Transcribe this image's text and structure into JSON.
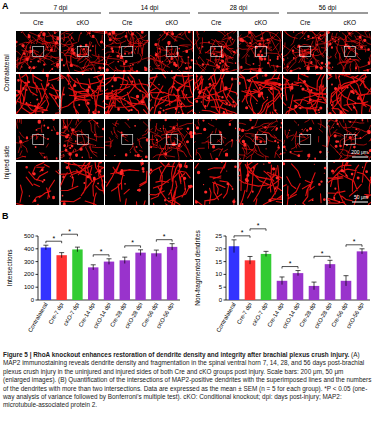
{
  "panel_a": {
    "label": "A",
    "time_points": [
      "7 dpi",
      "14 dpi",
      "28 dpi",
      "56 dpi"
    ],
    "groups": [
      "Cre",
      "cKO"
    ],
    "rows": [
      "Contralateral",
      "Injured side"
    ],
    "scale_bars": [
      "200 μm",
      "50 μm"
    ]
  },
  "panel_b": {
    "label": "B"
  },
  "chart_data": [
    {
      "type": "bar",
      "y_label": "Intersections",
      "categories": [
        "Contralateral",
        "Cre-7 dpi",
        "cKO-7 dpi",
        "Cre-14 dpi",
        "cKO-14 dpi",
        "Cre-28 dpi",
        "cKO-28 dpi",
        "Cre-56 dpi",
        "cKO-56 dpi"
      ],
      "values": [
        410,
        350,
        395,
        255,
        300,
        310,
        370,
        365,
        415
      ],
      "errors": [
        18,
        20,
        18,
        20,
        22,
        25,
        22,
        25,
        25
      ],
      "colors": [
        "#3333ff",
        "#ff3333",
        "#33cc33",
        "#9933cc",
        "#9933cc",
        "#9933cc",
        "#9933cc",
        "#9933cc",
        "#9933cc"
      ],
      "ylim": [
        0,
        500
      ],
      "yticks": [
        0,
        100,
        200,
        300,
        400,
        500
      ],
      "comparisons": [
        {
          "pair": [
            0,
            1
          ],
          "label": "*"
        },
        {
          "pair": [
            1,
            2
          ],
          "label": "*"
        },
        {
          "pair": [
            3,
            4
          ],
          "label": "*"
        },
        {
          "pair": [
            5,
            6
          ],
          "label": "*"
        },
        {
          "pair": [
            7,
            8
          ],
          "label": "*"
        }
      ]
    },
    {
      "type": "bar",
      "y_label": "Non-fragmented dendrites",
      "categories": [
        "Contralateral",
        "Cre-7 dpi",
        "cKO-7 dpi",
        "Cre-14 dpi",
        "cKO-14 dpi",
        "Cre-28 dpi",
        "cKO-28 dpi",
        "Cre-56 dpi",
        "cKO-56 dpi"
      ],
      "values": [
        21,
        15.5,
        18,
        7.5,
        10.5,
        5.5,
        14,
        7.5,
        19
      ],
      "errors": [
        2.5,
        1.5,
        1,
        1.5,
        1,
        1.5,
        1.5,
        2,
        1
      ],
      "colors": [
        "#3333ff",
        "#ff3333",
        "#33cc33",
        "#9933cc",
        "#9933cc",
        "#9933cc",
        "#9933cc",
        "#9933cc",
        "#9933cc"
      ],
      "ylim": [
        0,
        25
      ],
      "yticks": [
        0,
        5,
        10,
        15,
        20,
        25
      ],
      "comparisons": [
        {
          "pair": [
            0,
            1
          ],
          "label": "*"
        },
        {
          "pair": [
            1,
            2
          ],
          "label": "*"
        },
        {
          "pair": [
            3,
            4
          ],
          "label": "*"
        },
        {
          "pair": [
            5,
            6
          ],
          "label": "*"
        },
        {
          "pair": [
            7,
            8
          ],
          "label": "*"
        }
      ]
    }
  ],
  "caption": {
    "title": "Figure 5 | RhoA knockout enhances restoration of dendrite density and integrity after brachial plexus crush injury.",
    "text": "(A) MAP2 immunostaining reveals dendrite density and fragmentation in the spinal ventral horn 7, 14, 28, and 56 days post-brachial plexus crush injury in the uninjured and injured sides of both Cre and cKO groups post injury. Scale bars: 200 μm, 50 μm (enlarged images). (B) Quantification of the intersections of MAP2-positive dendrites with the superimposed lines and the numbers of the dendrites with more than two intersections. Data are expressed as the mean ± SEM (n = 5 for each group). *P < 0.05 (one-way analysis of variance followed by Bonferroni's multiple test). cKO: Conditional knockout; dpi: days post-injury; MAP2: microtubule-associated protein 2."
  }
}
